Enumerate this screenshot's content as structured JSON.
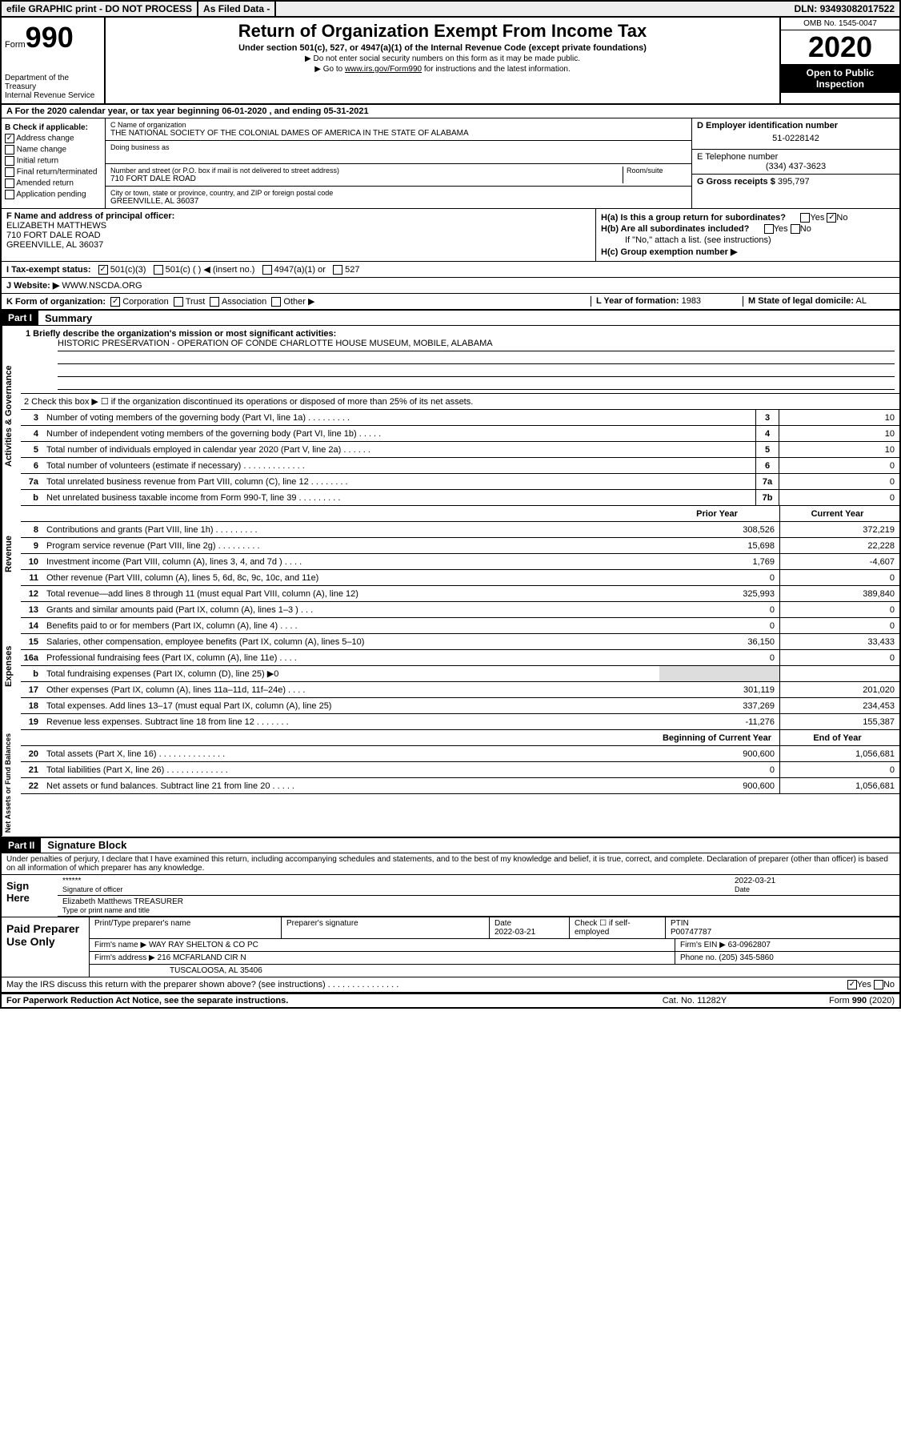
{
  "topbar": {
    "efile": "efile GRAPHIC print - DO NOT PROCESS",
    "asfiled": "As Filed Data -",
    "dln_label": "DLN:",
    "dln": "93493082017522"
  },
  "header": {
    "form_word": "Form",
    "form_num": "990",
    "dept": "Department of the Treasury\nInternal Revenue Service",
    "title": "Return of Organization Exempt From Income Tax",
    "sub": "Under section 501(c), 527, or 4947(a)(1) of the Internal Revenue Code (except private foundations)",
    "sub2a": "▶ Do not enter social security numbers on this form as it may be made public.",
    "sub2b_pre": "▶ Go to ",
    "sub2b_link": "www.irs.gov/Form990",
    "sub2b_post": " for instructions and the latest information.",
    "omb": "OMB No. 1545-0047",
    "year": "2020",
    "open_pub": "Open to Public Inspection"
  },
  "lineA": {
    "pre": "A  For the 2020 calendar year, or tax year beginning ",
    "begin": "06-01-2020",
    "mid": "  , and ending ",
    "end": "05-31-2021"
  },
  "colB": {
    "hdr": "B Check if applicable:",
    "items": [
      "Address change",
      "Name change",
      "Initial return",
      "Final return/terminated",
      "Amended return",
      "Application pending"
    ],
    "checked": [
      true,
      false,
      false,
      false,
      false,
      false
    ]
  },
  "colC": {
    "name_label": "C Name of organization",
    "name": "THE NATIONAL SOCIETY OF THE COLONIAL DAMES OF AMERICA IN THE STATE OF ALABAMA",
    "dba_label": "Doing business as",
    "addr_label": "Number and street (or P.O. box if mail is not delivered to street address)",
    "room_label": "Room/suite",
    "addr": "710 FORT DALE ROAD",
    "city_label": "City or town, state or province, country, and ZIP or foreign postal code",
    "city": "GREENVILLE, AL  36037"
  },
  "colD": {
    "ein_label": "D Employer identification number",
    "ein": "51-0228142",
    "tel_label": "E Telephone number",
    "tel": "(334) 437-3623",
    "gross_label": "G Gross receipts $",
    "gross": "395,797"
  },
  "colF": {
    "label": "F  Name and address of principal officer:",
    "name": "ELIZABETH MATTHEWS",
    "addr1": "710 FORT DALE ROAD",
    "addr2": "GREENVILLE, AL  36037"
  },
  "colH": {
    "ha": "H(a) Is this a group return for subordinates?",
    "ha_yes": "Yes",
    "ha_no": "No",
    "hb": "H(b) Are all subordinates included?",
    "hb_note": "If \"No,\" attach a list. (see instructions)",
    "hc": "H(c) Group exemption number ▶"
  },
  "lineI": {
    "label": "I  Tax-exempt status:",
    "opts": [
      "501(c)(3)",
      "501(c) (  ) ◀ (insert no.)",
      "4947(a)(1) or",
      "527"
    ],
    "checked": [
      true,
      false,
      false,
      false
    ]
  },
  "lineJ": {
    "label": "J  Website: ▶",
    "val": "WWW.NSCDA.ORG"
  },
  "lineK": {
    "label": "K Form of organization:",
    "opts": [
      "Corporation",
      "Trust",
      "Association",
      "Other ▶"
    ],
    "checked": [
      true,
      false,
      false,
      false
    ]
  },
  "lineLM": {
    "l_label": "L Year of formation:",
    "l_val": "1983",
    "m_label": "M State of legal domicile:",
    "m_val": "AL"
  },
  "partI": {
    "hdr": "Part I",
    "title": "Summary",
    "mission_label": "1 Briefly describe the organization's mission or most significant activities:",
    "mission": "HISTORIC PRESERVATION - OPERATION OF CONDE CHARLOTTE HOUSE MUSEUM, MOBILE, ALABAMA",
    "line2": "2  Check this box ▶ ☐ if the organization discontinued its operations or disposed of more than 25% of its net assets.",
    "vtabs": [
      "Activities & Governance",
      "Revenue",
      "Expenses",
      "Net Assets or Fund Balances"
    ],
    "gov_lines": [
      {
        "n": "3",
        "t": "Number of voting members of the governing body (Part VI, line 1a)  .  .  .  .  .  .  .  .  .",
        "box": "3",
        "v": "10"
      },
      {
        "n": "4",
        "t": "Number of independent voting members of the governing body (Part VI, line 1b)  .  .  .  .  .",
        "box": "4",
        "v": "10"
      },
      {
        "n": "5",
        "t": "Total number of individuals employed in calendar year 2020 (Part V, line 2a)  .  .  .  .  .  .",
        "box": "5",
        "v": "10"
      },
      {
        "n": "6",
        "t": "Total number of volunteers (estimate if necessary)  .  .  .  .  .  .  .  .  .  .  .  .  .",
        "box": "6",
        "v": "0"
      },
      {
        "n": "7a",
        "t": "Total unrelated business revenue from Part VIII, column (C), line 12  .  .  .  .  .  .  .  .",
        "box": "7a",
        "v": "0"
      },
      {
        "n": "b",
        "t": "Net unrelated business taxable income from Form 990-T, line 39  .  .  .  .  .  .  .  .  .",
        "box": "7b",
        "v": "0"
      }
    ],
    "col_hdrs": {
      "py": "Prior Year",
      "cy": "Current Year",
      "bcy": "Beginning of Current Year",
      "eoy": "End of Year"
    },
    "rev_lines": [
      {
        "n": "8",
        "t": "Contributions and grants (Part VIII, line 1h)  .  .  .  .  .  .  .  .  .",
        "py": "308,526",
        "cy": "372,219"
      },
      {
        "n": "9",
        "t": "Program service revenue (Part VIII, line 2g)  .  .  .  .  .  .  .  .  .",
        "py": "15,698",
        "cy": "22,228"
      },
      {
        "n": "10",
        "t": "Investment income (Part VIII, column (A), lines 3, 4, and 7d )  .  .  .  .",
        "py": "1,769",
        "cy": "-4,607"
      },
      {
        "n": "11",
        "t": "Other revenue (Part VIII, column (A), lines 5, 6d, 8c, 9c, 10c, and 11e)",
        "py": "0",
        "cy": "0"
      },
      {
        "n": "12",
        "t": "Total revenue—add lines 8 through 11 (must equal Part VIII, column (A), line 12)",
        "py": "325,993",
        "cy": "389,840"
      }
    ],
    "exp_lines": [
      {
        "n": "13",
        "t": "Grants and similar amounts paid (Part IX, column (A), lines 1–3 )  .  .  .",
        "py": "0",
        "cy": "0"
      },
      {
        "n": "14",
        "t": "Benefits paid to or for members (Part IX, column (A), line 4)  .  .  .  .",
        "py": "0",
        "cy": "0"
      },
      {
        "n": "15",
        "t": "Salaries, other compensation, employee benefits (Part IX, column (A), lines 5–10)",
        "py": "36,150",
        "cy": "33,433"
      },
      {
        "n": "16a",
        "t": "Professional fundraising fees (Part IX, column (A), line 11e)  .  .  .  .",
        "py": "0",
        "cy": "0"
      },
      {
        "n": "b",
        "t": "Total fundraising expenses (Part IX, column (D), line 25) ▶0",
        "py": "",
        "cy": ""
      },
      {
        "n": "17",
        "t": "Other expenses (Part IX, column (A), lines 11a–11d, 11f–24e)  .  .  .  .",
        "py": "301,119",
        "cy": "201,020"
      },
      {
        "n": "18",
        "t": "Total expenses. Add lines 13–17 (must equal Part IX, column (A), line 25)",
        "py": "337,269",
        "cy": "234,453"
      },
      {
        "n": "19",
        "t": "Revenue less expenses. Subtract line 18 from line 12  .  .  .  .  .  .  .",
        "py": "-11,276",
        "cy": "155,387"
      }
    ],
    "na_lines": [
      {
        "n": "20",
        "t": "Total assets (Part X, line 16)  .  .  .  .  .  .  .  .  .  .  .  .  .  .",
        "py": "900,600",
        "cy": "1,056,681"
      },
      {
        "n": "21",
        "t": "Total liabilities (Part X, line 26)  .  .  .  .  .  .  .  .  .  .  .  .  .",
        "py": "0",
        "cy": "0"
      },
      {
        "n": "22",
        "t": "Net assets or fund balances. Subtract line 21 from line 20  .  .  .  .  .",
        "py": "900,600",
        "cy": "1,056,681"
      }
    ]
  },
  "partII": {
    "hdr": "Part II",
    "title": "Signature Block",
    "perjury": "Under penalties of perjury, I declare that I have examined this return, including accompanying schedules and statements, and to the best of my knowledge and belief, it is true, correct, and complete. Declaration of preparer (other than officer) is based on all information of which preparer has any knowledge.",
    "sign_here": "Sign Here",
    "sig_stars": "******",
    "sig_date": "2022-03-21",
    "sig_of_officer": "Signature of officer",
    "date_label": "Date",
    "officer_name": "Elizabeth Matthews TREASURER",
    "type_label": "Type or print name and title",
    "paid": "Paid Preparer Use Only",
    "prep_name_label": "Print/Type preparer's name",
    "prep_sig_label": "Preparer's signature",
    "prep_date_label": "Date",
    "prep_date": "2022-03-21",
    "check_self": "Check ☐ if self-employed",
    "ptin_label": "PTIN",
    "ptin": "P00747787",
    "firm_name_label": "Firm's name   ▶",
    "firm_name": "WAY RAY SHELTON & CO PC",
    "firm_ein_label": "Firm's EIN ▶",
    "firm_ein": "63-0962807",
    "firm_addr_label": "Firm's address ▶",
    "firm_addr1": "216 MCFARLAND CIR N",
    "firm_addr2": "TUSCALOOSA, AL  35406",
    "phone_label": "Phone no.",
    "phone": "(205) 345-5860",
    "discuss": "May the IRS discuss this return with the preparer shown above? (see instructions)  .  .  .  .  .  .  .  .  .  .  .  .  .  .  .",
    "discuss_yes": "Yes",
    "discuss_no": "No"
  },
  "footer": {
    "pra": "For Paperwork Reduction Act Notice, see the separate instructions.",
    "cat": "Cat. No. 11282Y",
    "form": "Form 990 (2020)"
  }
}
